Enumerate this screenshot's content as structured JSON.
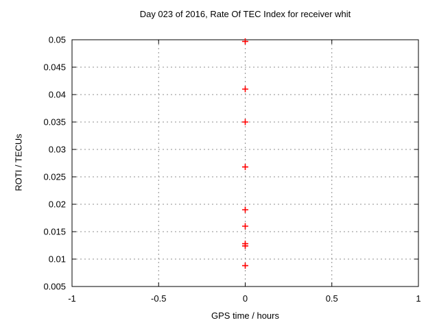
{
  "chart_data": {
    "type": "scatter",
    "title": "Day 023 of 2016, Rate Of TEC Index for receiver whit",
    "xlabel": "GPS time / hours",
    "ylabel": "ROTI / TECUs",
    "xlim": [
      -1,
      1
    ],
    "ylim": [
      0.005,
      0.05
    ],
    "xticks": [
      -1,
      -0.5,
      0,
      0.5,
      1
    ],
    "xtick_labels": [
      "-1",
      "-0.5",
      "0",
      "0.5",
      "1"
    ],
    "yticks": [
      0.005,
      0.01,
      0.015,
      0.02,
      0.025,
      0.03,
      0.035,
      0.04,
      0.045,
      0.05
    ],
    "ytick_labels": [
      "0.005",
      "0.01",
      "0.015",
      "0.02",
      "0.025",
      "0.03",
      "0.035",
      "0.04",
      "0.045",
      "0.05"
    ],
    "grid": true,
    "legend_position": "none",
    "marker": "plus",
    "colors": {
      "marker": "#ff0000",
      "grid": "#8c8c8c",
      "axis": "#000000",
      "text": "#000000",
      "background": "#ffffff"
    },
    "series": [
      {
        "name": "ROTI",
        "x": [
          0,
          0,
          0,
          0,
          0,
          0,
          0,
          0,
          0
        ],
        "y": [
          0.0497,
          0.041,
          0.035,
          0.0268,
          0.019,
          0.016,
          0.0128,
          0.0124,
          0.0088
        ]
      }
    ]
  }
}
